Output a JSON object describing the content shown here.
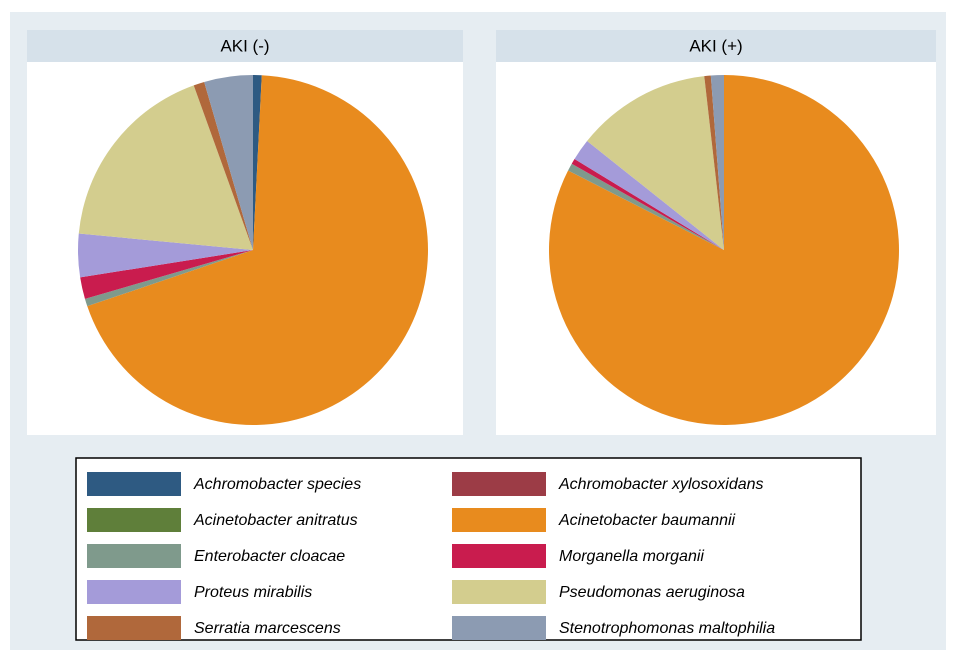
{
  "chart_data": [
    {
      "type": "pie",
      "title": "AKI (-)",
      "categories": [
        "Achromobacter species",
        "Achromobacter xylosoxidans",
        "Acinetobacter anitratus",
        "Acinetobacter baumannii",
        "Enterobacter cloacae",
        "Morganella morganii",
        "Proteus mirabilis",
        "Pseudomonas aeruginosa",
        "Serratia marcescens",
        "Stenotrophomonas maltophilia"
      ],
      "values": [
        0.8,
        0,
        0,
        69,
        0.7,
        2,
        4,
        18,
        1,
        4.5
      ],
      "colors": [
        "#2e5a82",
        "#9c3c46",
        "#5f7f3a",
        "#e88b1e",
        "#7f9a8c",
        "#c91c4e",
        "#a49bd9",
        "#d3cd8e",
        "#b0683b",
        "#8c9bb2"
      ]
    },
    {
      "type": "pie",
      "title": "AKI (+)",
      "categories": [
        "Achromobacter species",
        "Achromobacter xylosoxidans",
        "Acinetobacter anitratus",
        "Acinetobacter baumannii",
        "Enterobacter cloacae",
        "Morganella morganii",
        "Proteus mirabilis",
        "Pseudomonas aeruginosa",
        "Serratia marcescens",
        "Stenotrophomonas maltophilia"
      ],
      "values": [
        0,
        0,
        0,
        82.5,
        0.7,
        0.5,
        2,
        12.5,
        0.6,
        1.2
      ],
      "colors": [
        "#2e5a82",
        "#9c3c46",
        "#5f7f3a",
        "#e88b1e",
        "#7f9a8c",
        "#c91c4e",
        "#a49bd9",
        "#d3cd8e",
        "#b0683b",
        "#8c9bb2"
      ]
    }
  ]
}
